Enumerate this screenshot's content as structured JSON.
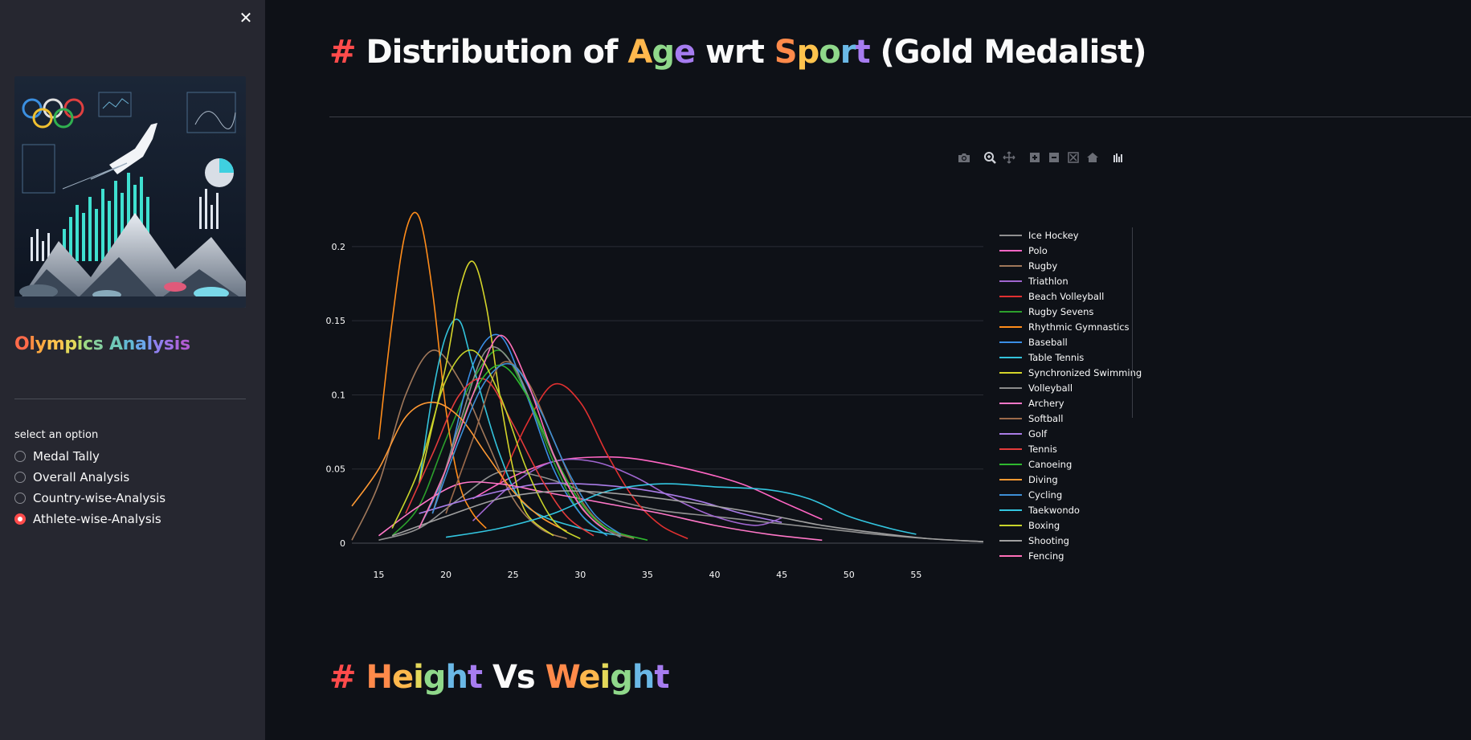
{
  "sidebar": {
    "title_parts": [
      {
        "text": "O",
        "color": "#ff6b4a"
      },
      {
        "text": "l",
        "color": "#ff8c42"
      },
      {
        "text": "y",
        "color": "#ffa940"
      },
      {
        "text": "m",
        "color": "#ffc34d"
      },
      {
        "text": "p",
        "color": "#e3d85a"
      },
      {
        "text": "i",
        "color": "#b8dc6a"
      },
      {
        "text": "c",
        "color": "#9bd886"
      },
      {
        "text": "s",
        "color": "#85cf9e"
      },
      {
        "text": " ",
        "color": "#ffffff"
      },
      {
        "text": "A",
        "color": "#6fc8b8"
      },
      {
        "text": "n",
        "color": "#63b9d4"
      },
      {
        "text": "a",
        "color": "#6aa7ea"
      },
      {
        "text": "l",
        "color": "#7c93f0"
      },
      {
        "text": "y",
        "color": "#8f80ee"
      },
      {
        "text": "s",
        "color": "#9d72e6"
      },
      {
        "text": "i",
        "color": "#a866dc"
      },
      {
        "text": "s",
        "color": "#b25cd3"
      }
    ],
    "radio_label": "select an option",
    "options": [
      {
        "label": "Medal Tally",
        "checked": false
      },
      {
        "label": "Overall Analysis",
        "checked": false
      },
      {
        "label": "Country-wise-Analysis",
        "checked": false
      },
      {
        "label": "Athlete-wise-Analysis",
        "checked": true
      }
    ]
  },
  "header": {
    "hash": "#",
    "parts": [
      {
        "text": "Distribution of ",
        "color": "#fafafa"
      },
      {
        "text": "A",
        "color": "#ffb84d"
      },
      {
        "text": "g",
        "color": "#8fd88a"
      },
      {
        "text": "e",
        "color": "#a67cf0"
      },
      {
        "text": " wrt ",
        "color": "#fafafa"
      },
      {
        "text": "S",
        "color": "#ff8a4a"
      },
      {
        "text": "p",
        "color": "#ffc34d"
      },
      {
        "text": "o",
        "color": "#8fd88a"
      },
      {
        "text": "r",
        "color": "#6ab8e6"
      },
      {
        "text": "t",
        "color": "#a67cf0"
      },
      {
        "text": " (Gold Medalist)",
        "color": "#fafafa"
      }
    ]
  },
  "section2": {
    "hash": "#",
    "parts": [
      {
        "text": "H",
        "color": "#ff8a4a"
      },
      {
        "text": "e",
        "color": "#ffb84d"
      },
      {
        "text": "i",
        "color": "#e3d85a"
      },
      {
        "text": "g",
        "color": "#8fd88a"
      },
      {
        "text": "h",
        "color": "#6ab8e6"
      },
      {
        "text": "t",
        "color": "#a67cf0"
      },
      {
        "text": " Vs ",
        "color": "#fafafa"
      },
      {
        "text": "W",
        "color": "#ff8a4a"
      },
      {
        "text": "e",
        "color": "#ffb84d"
      },
      {
        "text": "i",
        "color": "#e3d85a"
      },
      {
        "text": "g",
        "color": "#8fd88a"
      },
      {
        "text": "h",
        "color": "#6ab8e6"
      },
      {
        "text": "t",
        "color": "#a67cf0"
      }
    ]
  },
  "modebar": [
    "camera-icon",
    "zoom-icon",
    "pan-icon",
    "zoom-in-icon",
    "zoom-out-icon",
    "autoscale-icon",
    "reset-axes-icon",
    "plotly-logo-icon"
  ],
  "chart_data": {
    "type": "line",
    "xlim": [
      13,
      60
    ],
    "ylim": [
      0,
      0.22
    ],
    "x_ticks": [
      15,
      20,
      25,
      30,
      35,
      40,
      45,
      50,
      55
    ],
    "y_ticks": [
      0,
      0.05,
      0.1,
      0.15,
      0.2
    ],
    "y_tick_labels": [
      "0",
      "0.05",
      "0.1",
      "0.15",
      "0.2"
    ],
    "grid": true,
    "legend_position": "right",
    "series": [
      {
        "name": "Ice Hockey",
        "color": "#909090",
        "points": [
          [
            15,
            0.002
          ],
          [
            18,
            0.01
          ],
          [
            21,
            0.03
          ],
          [
            24,
            0.048
          ],
          [
            27,
            0.045
          ],
          [
            30,
            0.036
          ],
          [
            33,
            0.028
          ],
          [
            36,
            0.022
          ],
          [
            40,
            0.018
          ],
          [
            44,
            0.014
          ],
          [
            48,
            0.01
          ],
          [
            52,
            0.006
          ],
          [
            56,
            0.003
          ],
          [
            60,
            0.001
          ]
        ]
      },
      {
        "name": "Polo",
        "color": "#ff66c4",
        "points": [
          [
            22,
            0.03
          ],
          [
            25,
            0.045
          ],
          [
            28,
            0.055
          ],
          [
            31,
            0.058
          ],
          [
            34,
            0.057
          ],
          [
            38,
            0.05
          ],
          [
            42,
            0.04
          ],
          [
            45,
            0.028
          ],
          [
            48,
            0.016
          ]
        ]
      },
      {
        "name": "Rugby",
        "color": "#a0785a",
        "points": [
          [
            13,
            0.002
          ],
          [
            15,
            0.04
          ],
          [
            17,
            0.1
          ],
          [
            19,
            0.13
          ],
          [
            21,
            0.11
          ],
          [
            23,
            0.07
          ],
          [
            25,
            0.03
          ],
          [
            27,
            0.01
          ],
          [
            29,
            0.003
          ]
        ]
      },
      {
        "name": "Triathlon",
        "color": "#a066d0",
        "points": [
          [
            22,
            0.015
          ],
          [
            25,
            0.04
          ],
          [
            28,
            0.055
          ],
          [
            31,
            0.055
          ],
          [
            34,
            0.045
          ],
          [
            37,
            0.03
          ],
          [
            40,
            0.018
          ],
          [
            43,
            0.012
          ],
          [
            45,
            0.017
          ]
        ]
      },
      {
        "name": "Beach Volleyball",
        "color": "#e03030",
        "points": [
          [
            24,
            0.04
          ],
          [
            26,
            0.08
          ],
          [
            28,
            0.107
          ],
          [
            30,
            0.095
          ],
          [
            32,
            0.06
          ],
          [
            34,
            0.03
          ],
          [
            36,
            0.012
          ],
          [
            38,
            0.003
          ]
        ]
      },
      {
        "name": "Rugby Sevens",
        "color": "#2ca02c",
        "points": [
          [
            16,
            0.005
          ],
          [
            18,
            0.025
          ],
          [
            20,
            0.07
          ],
          [
            22,
            0.11
          ],
          [
            24,
            0.13
          ],
          [
            26,
            0.1
          ],
          [
            28,
            0.055
          ],
          [
            30,
            0.02
          ],
          [
            32,
            0.005
          ]
        ]
      },
      {
        "name": "Rhythmic Gymnastics",
        "color": "#ff8c1a",
        "points": [
          [
            15,
            0.07
          ],
          [
            16,
            0.15
          ],
          [
            17,
            0.21
          ],
          [
            18,
            0.22
          ],
          [
            19,
            0.17
          ],
          [
            20,
            0.09
          ],
          [
            21,
            0.04
          ],
          [
            22,
            0.02
          ],
          [
            23,
            0.01
          ]
        ]
      },
      {
        "name": "Baseball",
        "color": "#3a8ee6",
        "points": [
          [
            18,
            0.01
          ],
          [
            20,
            0.05
          ],
          [
            22,
            0.12
          ],
          [
            24,
            0.14
          ],
          [
            26,
            0.1
          ],
          [
            28,
            0.05
          ],
          [
            30,
            0.02
          ],
          [
            32,
            0.005
          ]
        ]
      },
      {
        "name": "Table Tennis",
        "color": "#33c3db",
        "points": [
          [
            18,
            0.04
          ],
          [
            19,
            0.1
          ],
          [
            20,
            0.14
          ],
          [
            21,
            0.15
          ],
          [
            22,
            0.12
          ],
          [
            24,
            0.06
          ],
          [
            26,
            0.025
          ],
          [
            30,
            0.01
          ],
          [
            34,
            0.004
          ]
        ]
      },
      {
        "name": "Synchronized Swimming",
        "color": "#d4d42a",
        "points": [
          [
            18,
            0.04
          ],
          [
            20,
            0.12
          ],
          [
            21,
            0.17
          ],
          [
            22,
            0.19
          ],
          [
            23,
            0.16
          ],
          [
            24,
            0.1
          ],
          [
            25,
            0.05
          ],
          [
            26,
            0.02
          ],
          [
            28,
            0.005
          ]
        ]
      },
      {
        "name": "Volleyball",
        "color": "#8c8c8c",
        "points": [
          [
            19,
            0.02
          ],
          [
            21,
            0.08
          ],
          [
            23,
            0.13
          ],
          [
            25,
            0.12
          ],
          [
            27,
            0.08
          ],
          [
            29,
            0.04
          ],
          [
            31,
            0.015
          ],
          [
            33,
            0.004
          ]
        ]
      },
      {
        "name": "Archery",
        "color": "#ff77c8",
        "points": [
          [
            15,
            0.005
          ],
          [
            18,
            0.025
          ],
          [
            21,
            0.04
          ],
          [
            24,
            0.04
          ],
          [
            27,
            0.035
          ],
          [
            30,
            0.03
          ],
          [
            33,
            0.025
          ],
          [
            36,
            0.02
          ],
          [
            40,
            0.012
          ],
          [
            44,
            0.006
          ],
          [
            48,
            0.002
          ]
        ]
      },
      {
        "name": "Softball",
        "color": "#9c6a4a",
        "points": [
          [
            20,
            0.02
          ],
          [
            22,
            0.07
          ],
          [
            24,
            0.12
          ],
          [
            26,
            0.11
          ],
          [
            28,
            0.07
          ],
          [
            30,
            0.03
          ],
          [
            32,
            0.01
          ],
          [
            34,
            0.003
          ]
        ]
      },
      {
        "name": "Golf",
        "color": "#a97ce6",
        "points": [
          [
            18,
            0.02
          ],
          [
            21,
            0.028
          ],
          [
            24,
            0.035
          ],
          [
            27,
            0.04
          ],
          [
            30,
            0.04
          ],
          [
            33,
            0.038
          ],
          [
            36,
            0.034
          ],
          [
            39,
            0.028
          ],
          [
            42,
            0.02
          ],
          [
            45,
            0.014
          ]
        ]
      },
      {
        "name": "Tennis",
        "color": "#e33b3b",
        "points": [
          [
            17,
            0.02
          ],
          [
            19,
            0.06
          ],
          [
            21,
            0.1
          ],
          [
            23,
            0.11
          ],
          [
            25,
            0.08
          ],
          [
            27,
            0.045
          ],
          [
            29,
            0.018
          ],
          [
            31,
            0.005
          ]
        ]
      },
      {
        "name": "Canoeing",
        "color": "#2fb82f",
        "points": [
          [
            18,
            0.01
          ],
          [
            20,
            0.05
          ],
          [
            22,
            0.1
          ],
          [
            24,
            0.12
          ],
          [
            26,
            0.1
          ],
          [
            28,
            0.06
          ],
          [
            30,
            0.028
          ],
          [
            32,
            0.01
          ],
          [
            35,
            0.002
          ]
        ]
      },
      {
        "name": "Diving",
        "color": "#ff9933",
        "points": [
          [
            13,
            0.025
          ],
          [
            15,
            0.05
          ],
          [
            17,
            0.085
          ],
          [
            19,
            0.095
          ],
          [
            21,
            0.085
          ],
          [
            23,
            0.06
          ],
          [
            25,
            0.035
          ],
          [
            27,
            0.018
          ],
          [
            29,
            0.008
          ]
        ]
      },
      {
        "name": "Cycling",
        "color": "#3d8fd6",
        "points": [
          [
            19,
            0.02
          ],
          [
            21,
            0.07
          ],
          [
            23,
            0.11
          ],
          [
            25,
            0.12
          ],
          [
            27,
            0.09
          ],
          [
            29,
            0.05
          ],
          [
            31,
            0.02
          ],
          [
            33,
            0.006
          ]
        ]
      },
      {
        "name": "Taekwondo",
        "color": "#33c6e0",
        "points": [
          [
            20,
            0.004
          ],
          [
            24,
            0.01
          ],
          [
            28,
            0.02
          ],
          [
            32,
            0.035
          ],
          [
            36,
            0.04
          ],
          [
            40,
            0.038
          ],
          [
            44,
            0.036
          ],
          [
            47,
            0.03
          ],
          [
            50,
            0.018
          ],
          [
            53,
            0.01
          ],
          [
            55,
            0.006
          ]
        ]
      },
      {
        "name": "Boxing",
        "color": "#c8d42a",
        "points": [
          [
            16,
            0.01
          ],
          [
            18,
            0.05
          ],
          [
            20,
            0.11
          ],
          [
            22,
            0.13
          ],
          [
            24,
            0.1
          ],
          [
            26,
            0.05
          ],
          [
            28,
            0.015
          ],
          [
            30,
            0.003
          ]
        ]
      },
      {
        "name": "Shooting",
        "color": "#a0a0a0",
        "points": [
          [
            16,
            0.005
          ],
          [
            20,
            0.018
          ],
          [
            24,
            0.03
          ],
          [
            28,
            0.035
          ],
          [
            32,
            0.034
          ],
          [
            36,
            0.03
          ],
          [
            40,
            0.025
          ],
          [
            44,
            0.019
          ],
          [
            48,
            0.012
          ],
          [
            52,
            0.007
          ],
          [
            56,
            0.003
          ],
          [
            60,
            0.001
          ]
        ]
      },
      {
        "name": "Fencing",
        "color": "#ff6fb8",
        "points": [
          [
            18,
            0.01
          ],
          [
            20,
            0.05
          ],
          [
            22,
            0.1
          ],
          [
            24,
            0.14
          ],
          [
            26,
            0.11
          ],
          [
            28,
            0.06
          ],
          [
            30,
            0.025
          ],
          [
            32,
            0.008
          ]
        ]
      }
    ]
  }
}
